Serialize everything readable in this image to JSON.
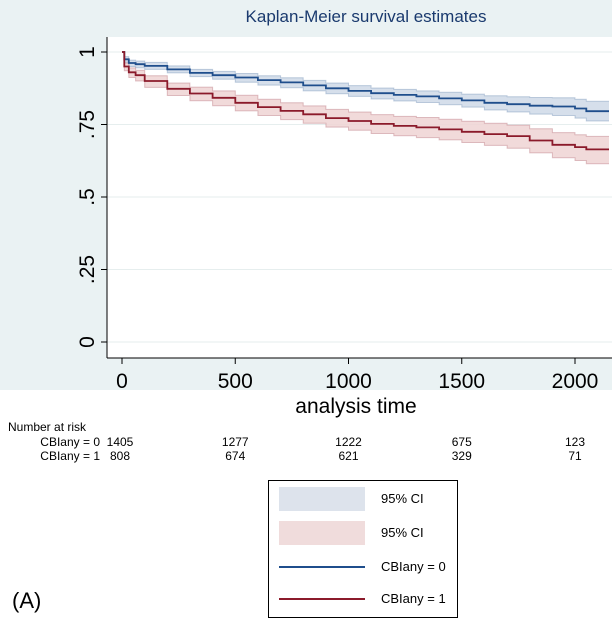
{
  "chart_data": {
    "type": "line",
    "title": "Kaplan-Meier survival estimates",
    "xlabel": "analysis time",
    "ylabel": "",
    "xlim": [
      -30,
      2150
    ],
    "ylim": [
      0,
      1
    ],
    "x_ticks": [
      0,
      500,
      1000,
      1500,
      2000
    ],
    "x_tick_labels": [
      "0",
      "500",
      "1000",
      "1500",
      "2000"
    ],
    "y_ticks": [
      0,
      0.25,
      0.5,
      0.75,
      1
    ],
    "y_tick_labels": [
      "0",
      ".25",
      ".5",
      ".75",
      "1"
    ],
    "grid": true,
    "series": [
      {
        "name": "CBIany = 0",
        "color": "#1f4e8c",
        "ci_color": "#cfd9e8",
        "x": [
          0,
          10,
          30,
          60,
          100,
          200,
          300,
          400,
          500,
          600,
          700,
          800,
          900,
          1000,
          1100,
          1200,
          1300,
          1400,
          1500,
          1600,
          1700,
          1800,
          1900,
          2000,
          2050,
          2150
        ],
        "y": [
          1.0,
          0.975,
          0.962,
          0.958,
          0.952,
          0.94,
          0.928,
          0.92,
          0.912,
          0.903,
          0.895,
          0.885,
          0.875,
          0.866,
          0.858,
          0.852,
          0.847,
          0.84,
          0.833,
          0.825,
          0.82,
          0.815,
          0.812,
          0.805,
          0.796,
          0.796
        ],
        "lo": [
          1.0,
          0.965,
          0.95,
          0.945,
          0.94,
          0.928,
          0.915,
          0.906,
          0.896,
          0.886,
          0.877,
          0.866,
          0.856,
          0.847,
          0.838,
          0.831,
          0.826,
          0.818,
          0.81,
          0.8,
          0.793,
          0.786,
          0.781,
          0.772,
          0.762,
          0.762
        ],
        "hi": [
          1.0,
          0.984,
          0.972,
          0.969,
          0.964,
          0.952,
          0.94,
          0.933,
          0.926,
          0.918,
          0.911,
          0.902,
          0.893,
          0.884,
          0.876,
          0.871,
          0.866,
          0.861,
          0.855,
          0.849,
          0.846,
          0.843,
          0.842,
          0.837,
          0.83,
          0.83
        ]
      },
      {
        "name": "CBIany = 1",
        "color": "#8b1a2b",
        "ci_color": "#efd3d3",
        "x": [
          0,
          10,
          30,
          60,
          100,
          200,
          300,
          400,
          500,
          600,
          700,
          800,
          900,
          1000,
          1100,
          1200,
          1300,
          1400,
          1500,
          1600,
          1700,
          1800,
          1900,
          2000,
          2050,
          2150
        ],
        "y": [
          1.0,
          0.95,
          0.93,
          0.92,
          0.9,
          0.873,
          0.857,
          0.842,
          0.825,
          0.81,
          0.797,
          0.785,
          0.772,
          0.762,
          0.752,
          0.745,
          0.74,
          0.733,
          0.725,
          0.717,
          0.71,
          0.695,
          0.68,
          0.672,
          0.664,
          0.664
        ],
        "lo": [
          1.0,
          0.935,
          0.912,
          0.9,
          0.878,
          0.85,
          0.832,
          0.815,
          0.797,
          0.781,
          0.767,
          0.754,
          0.741,
          0.73,
          0.719,
          0.711,
          0.705,
          0.697,
          0.688,
          0.678,
          0.668,
          0.652,
          0.635,
          0.626,
          0.615,
          0.615
        ],
        "hi": [
          1.0,
          0.962,
          0.945,
          0.937,
          0.918,
          0.893,
          0.879,
          0.866,
          0.851,
          0.837,
          0.825,
          0.814,
          0.802,
          0.793,
          0.784,
          0.778,
          0.774,
          0.768,
          0.761,
          0.754,
          0.748,
          0.735,
          0.722,
          0.715,
          0.709,
          0.709
        ]
      }
    ],
    "risk_table": {
      "title": "Number at risk",
      "times": [
        0,
        500,
        1000,
        1500,
        2000
      ],
      "rows": [
        {
          "label": "CBIany = 0",
          "values": [
            "1405",
            "1277",
            "1222",
            "675",
            "123"
          ]
        },
        {
          "label": "CBIany = 1",
          "values": [
            "808",
            "674",
            "621",
            "329",
            "71"
          ]
        }
      ]
    },
    "legend": {
      "placement": "bottom-center",
      "items": [
        {
          "label": "95% CI",
          "kind": "area",
          "color": "#dde3ec"
        },
        {
          "label": "95% CI",
          "kind": "area",
          "color": "#f0dcdc"
        },
        {
          "label": "CBIany = 0",
          "kind": "line",
          "color": "#1f4e8c"
        },
        {
          "label": "CBIany = 1",
          "kind": "line",
          "color": "#8b1a2b"
        }
      ]
    }
  },
  "panel_label": "(A)"
}
